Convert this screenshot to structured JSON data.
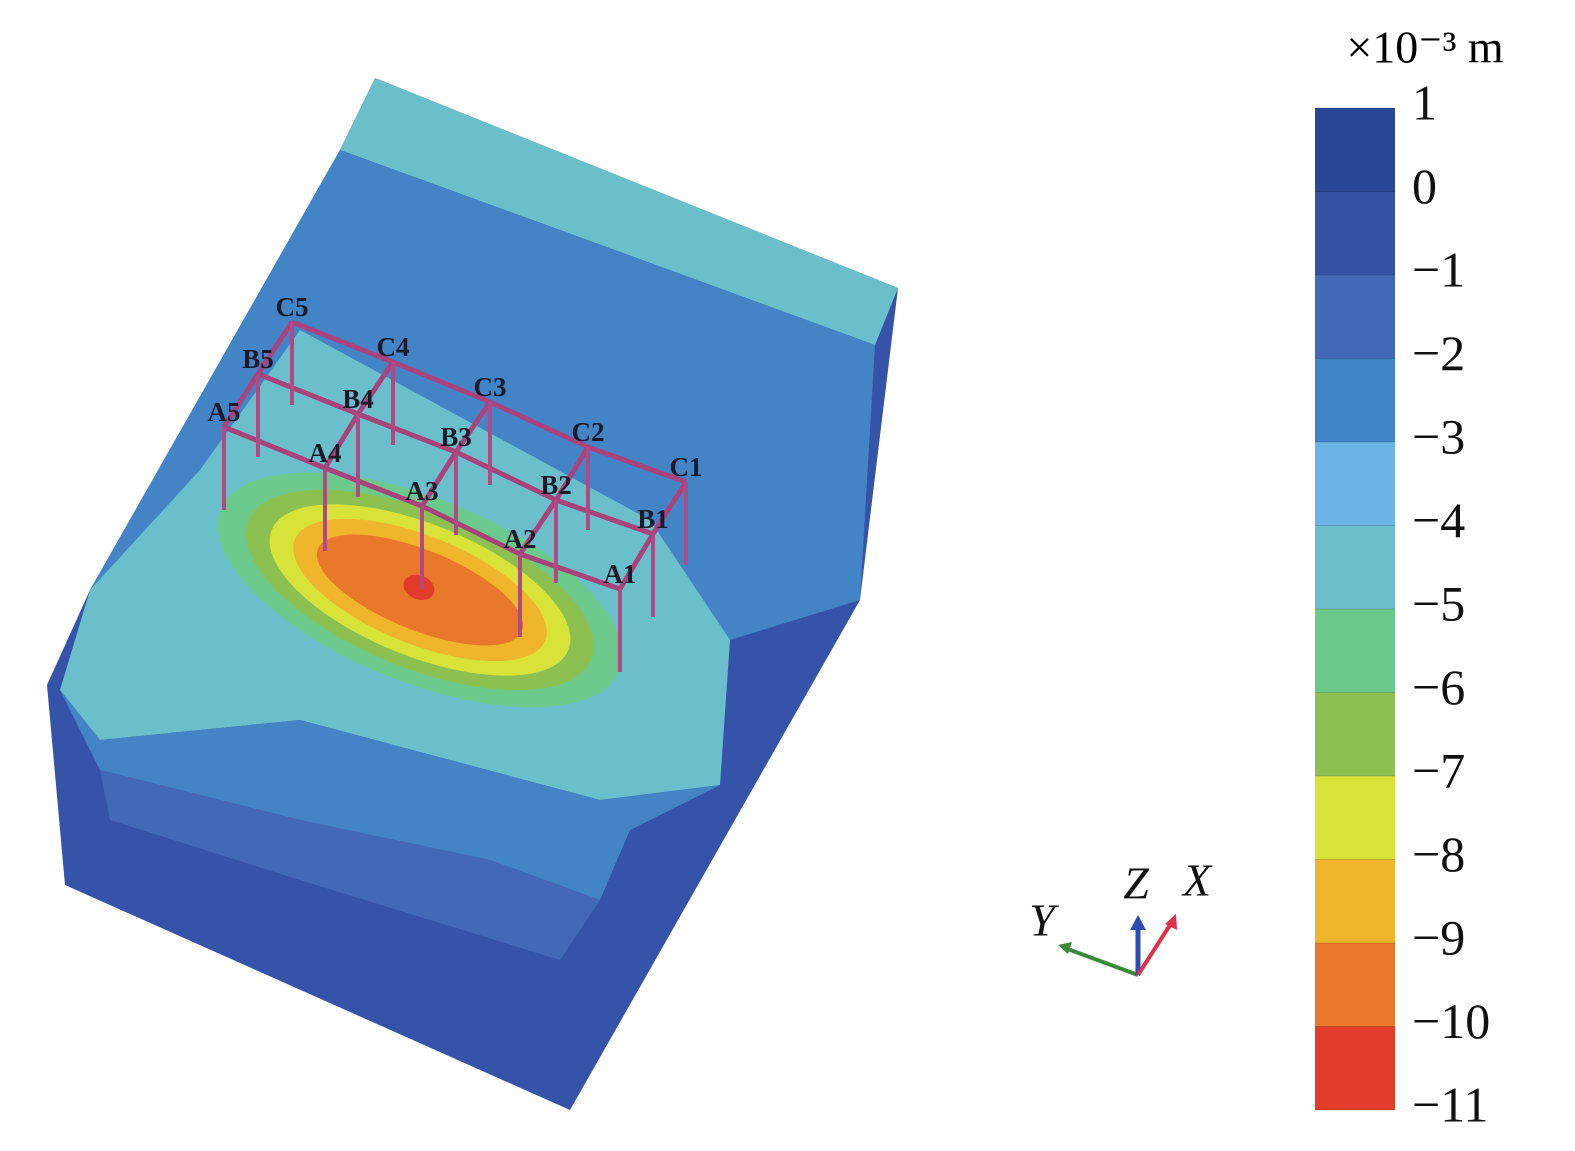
{
  "chart_data": {
    "type": "contour",
    "colorbar": {
      "unit": "×10⁻³ m",
      "ticks": [
        1,
        0,
        {
          "value": -1,
          "label": "−1"
        },
        {
          "value": -2,
          "label": "−2"
        },
        {
          "value": -3,
          "label": "−3"
        },
        {
          "value": -4,
          "label": "−4"
        },
        {
          "value": -5,
          "label": "−5"
        },
        {
          "value": -6,
          "label": "−6"
        },
        {
          "value": -7,
          "label": "−7"
        },
        {
          "value": -8,
          "label": "−8"
        },
        {
          "value": -9,
          "label": "−9"
        },
        {
          "value": -10,
          "label": "−10"
        },
        {
          "value": -11,
          "label": "−11"
        }
      ],
      "colors": [
        "#2a4796",
        "#3352a6",
        "#4468b8",
        "#3f86c8",
        "#6ab4e6",
        "#6bbfcb",
        "#6cc98c",
        "#8cc152",
        "#d8e33a",
        "#f1b52c",
        "#e9782a",
        "#e23c2a",
        "#d42236"
      ]
    },
    "node_labels": [
      "A1",
      "A2",
      "A3",
      "A4",
      "A5",
      "B1",
      "B2",
      "B3",
      "B4",
      "B5",
      "C1",
      "C2",
      "C3",
      "C4",
      "C5"
    ],
    "axes_triad": [
      "X",
      "Y",
      "Z"
    ]
  }
}
